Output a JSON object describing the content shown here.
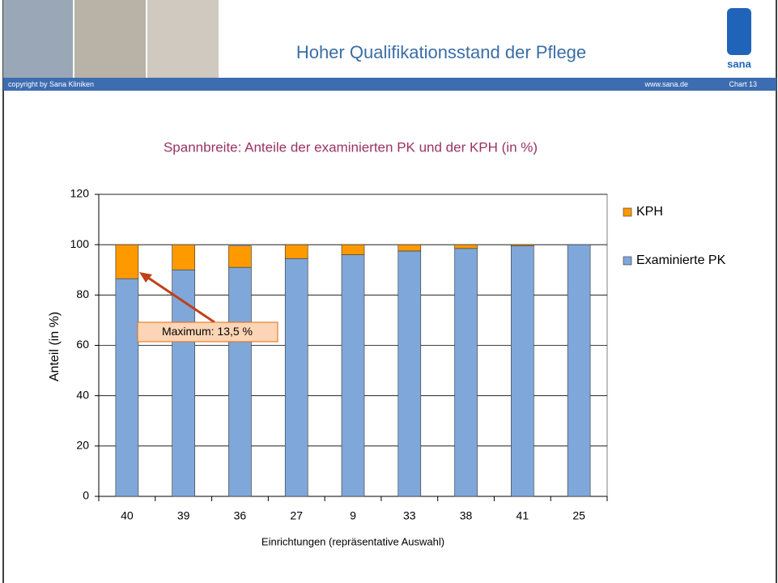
{
  "header": {
    "title": "Hoher Qualifikationsstand der Pflege",
    "copyright": "copyright by Sana Kliniken",
    "url": "www.sana.de",
    "chart_number": "Chart 13",
    "logo_text": "sana"
  },
  "chart_data": {
    "type": "bar",
    "stacked": true,
    "title": "Spannbreite: Anteile der examinierten PK und der KPH (in %)",
    "ylabel": "Anteil (in %)",
    "xlabel": "Einrichtungen (repräsentative Auswahl)",
    "categories": [
      "40",
      "39",
      "36",
      "27",
      "9",
      "33",
      "38",
      "41",
      "25"
    ],
    "series": [
      {
        "name": "Examinierte PK",
        "color": "#7fa7d9",
        "values": [
          86.5,
          90,
          91,
          94.5,
          96,
          97.5,
          98.5,
          99.5,
          100
        ]
      },
      {
        "name": "KPH",
        "color": "#ff9900",
        "values": [
          13.5,
          10,
          8.5,
          5.5,
          4,
          2.5,
          1.5,
          0.5,
          0
        ]
      }
    ],
    "ylim": [
      0,
      120
    ],
    "yticks": [
      0,
      20,
      40,
      60,
      80,
      100,
      120
    ],
    "grid": true,
    "legend": "right",
    "annotation": "Maximum: 13,5 %"
  }
}
